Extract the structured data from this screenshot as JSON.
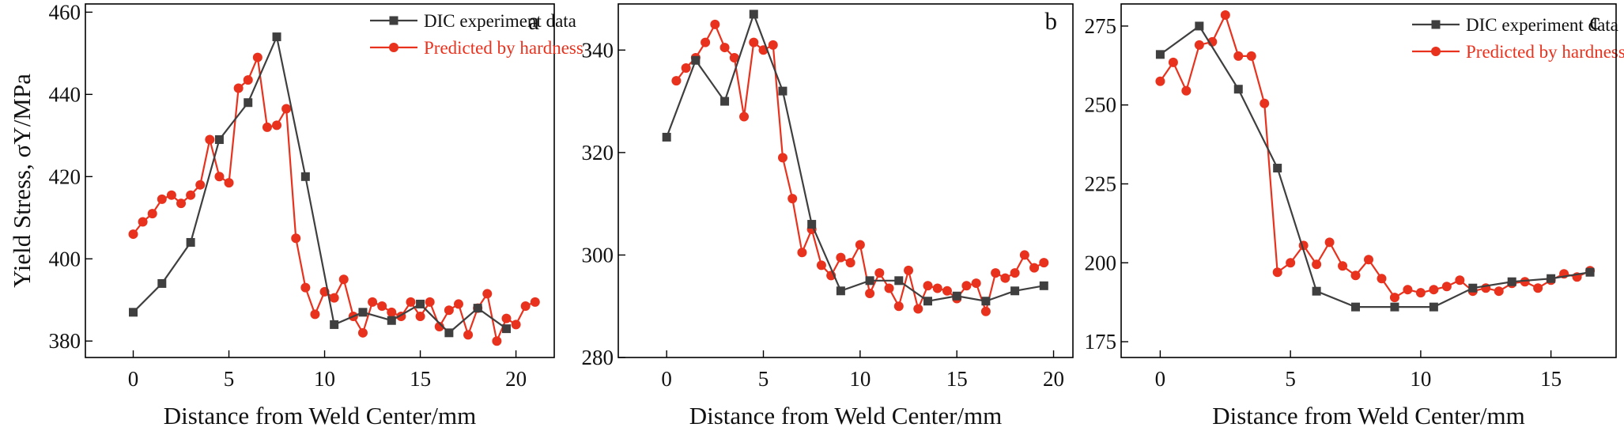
{
  "chart_data": [
    {
      "type": "line",
      "panel_label": "a",
      "xlabel": "Distance from Weld Center/mm",
      "ylabel": "Yield Stress, σY/MPa",
      "xlim": [
        -2.5,
        22
      ],
      "ylim": [
        376,
        462
      ],
      "xticks": [
        0,
        5,
        10,
        15,
        20
      ],
      "yticks": [
        380,
        400,
        420,
        440,
        460
      ],
      "legend_position": "top-right",
      "series": [
        {
          "name": "DIC experiment data",
          "color": "#3f3f3f",
          "marker": "square",
          "x": [
            0,
            1.5,
            3,
            4.5,
            6,
            7.5,
            9,
            10.5,
            12,
            13.5,
            15,
            16.5,
            18,
            19.5
          ],
          "y": [
            387,
            394,
            404,
            429,
            438,
            454,
            420,
            384,
            387,
            385,
            389,
            382,
            388,
            383
          ]
        },
        {
          "name": "Predicted by hardness",
          "color": "#e8321e",
          "marker": "circle",
          "x": [
            0,
            0.5,
            1,
            1.5,
            2,
            2.5,
            3,
            3.5,
            4,
            4.5,
            5,
            5.5,
            6,
            6.5,
            7,
            7.5,
            8,
            8.5,
            9,
            9.5,
            10,
            10.5,
            11,
            11.5,
            12,
            12.5,
            13,
            13.5,
            14,
            14.5,
            15,
            15.5,
            16,
            16.5,
            17,
            17.5,
            18,
            18.5,
            19,
            19.5,
            20,
            20.5,
            21
          ],
          "y": [
            406,
            409,
            411,
            414.5,
            415.5,
            413.5,
            415.5,
            418,
            429,
            420,
            418.5,
            441.5,
            443.5,
            449,
            432,
            432.5,
            436.5,
            405,
            393,
            386.5,
            392,
            390.5,
            395,
            386,
            382,
            389.5,
            388.5,
            387,
            386,
            389.5,
            386,
            389.5,
            383.5,
            387.5,
            389,
            381.5,
            388,
            391.5,
            380,
            385.5,
            384,
            388.5,
            389.5
          ]
        }
      ]
    },
    {
      "type": "line",
      "panel_label": "b",
      "xlabel": "Distance from Weld Center/mm",
      "ylabel": "",
      "xlim": [
        -2.5,
        21
      ],
      "ylim": [
        280,
        349
      ],
      "xticks": [
        0,
        5,
        10,
        15,
        20
      ],
      "yticks": [
        280,
        300,
        320,
        340
      ],
      "legend_position": "top-right",
      "series": [
        {
          "name": "DIC experiment data",
          "color": "#3f3f3f",
          "marker": "square",
          "x": [
            0,
            1.5,
            3,
            4.5,
            6,
            7.5,
            9,
            10.5,
            12,
            13.5,
            15,
            16.5,
            18,
            19.5
          ],
          "y": [
            323,
            338,
            330,
            347,
            332,
            306,
            293,
            295,
            295,
            291,
            292,
            291,
            293,
            294
          ]
        },
        {
          "name": "Predicted by hardness",
          "color": "#e8321e",
          "marker": "circle",
          "x": [
            0.5,
            1,
            1.5,
            2,
            2.5,
            3,
            3.5,
            4,
            4.5,
            5,
            5.5,
            6,
            6.5,
            7,
            7.5,
            8,
            8.5,
            9,
            9.5,
            10,
            10.5,
            11,
            11.5,
            12,
            12.5,
            13,
            13.5,
            14,
            14.5,
            15,
            15.5,
            16,
            16.5,
            17,
            17.5,
            18,
            18.5,
            19,
            19.5
          ],
          "y": [
            334,
            336.5,
            338.5,
            341.5,
            345,
            340.5,
            338.5,
            327,
            341.5,
            340,
            341,
            319,
            311,
            300.5,
            305,
            298,
            296,
            299.5,
            298.5,
            302,
            292.5,
            296.5,
            293.5,
            290,
            297,
            289.5,
            294,
            293.5,
            293,
            291.5,
            294,
            294.5,
            289,
            296.5,
            295.5,
            296.5,
            300,
            297.5,
            298.5
          ]
        }
      ]
    },
    {
      "type": "line",
      "panel_label": "c",
      "xlabel": "Distance from Weld Center/mm",
      "ylabel": "",
      "xlim": [
        -1.5,
        17.5
      ],
      "ylim": [
        170,
        282
      ],
      "xticks": [
        0,
        5,
        10,
        15
      ],
      "yticks": [
        175,
        200,
        225,
        250,
        275
      ],
      "legend_position": "top-right",
      "series": [
        {
          "name": "DIC experiment data",
          "color": "#3f3f3f",
          "marker": "square",
          "x": [
            0,
            1.5,
            3,
            4.5,
            6,
            7.5,
            9,
            10.5,
            12,
            13.5,
            15,
            16.5
          ],
          "y": [
            266,
            275,
            255,
            230,
            191,
            186,
            186,
            186,
            192,
            194,
            195,
            197
          ]
        },
        {
          "name": "Predicted by hardness",
          "color": "#e8321e",
          "marker": "circle",
          "x": [
            0,
            0.5,
            1,
            1.5,
            2,
            2.5,
            3,
            3.5,
            4,
            4.5,
            5,
            5.5,
            6,
            6.5,
            7,
            7.5,
            8,
            8.5,
            9,
            9.5,
            10,
            10.5,
            11,
            11.5,
            12,
            12.5,
            13,
            13.5,
            14,
            14.5,
            15,
            15.5,
            16,
            16.5
          ],
          "y": [
            257.5,
            263.5,
            254.5,
            269,
            270,
            278.5,
            265.5,
            265.5,
            250.5,
            197,
            200,
            205.5,
            199.5,
            206.5,
            199,
            196,
            201,
            195,
            189,
            191.5,
            190.5,
            191.5,
            192.5,
            194.5,
            191,
            192,
            191,
            193.5,
            194,
            192,
            194.5,
            196.5,
            195.5,
            197.5
          ]
        }
      ]
    }
  ]
}
